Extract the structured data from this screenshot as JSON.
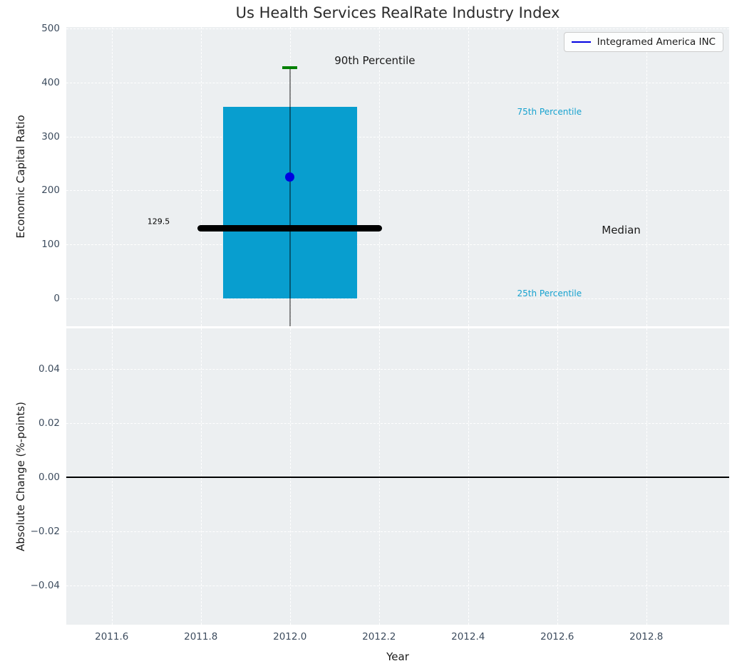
{
  "title": "Us Health Services RealRate Industry Index",
  "legend": {
    "label": "Integramed America INC"
  },
  "colors": {
    "figure_bg": "#ffffff",
    "axes_bg": "#eceff1",
    "grid": "#ffffff",
    "tick_label": "#3d4c5e",
    "axis_label": "#1a1a1a",
    "title_text": "#2b2b2b",
    "box_fill": "#089ecf",
    "median_line": "#000000",
    "whisker_line": "rgba(0,0,0,0.45)",
    "p90_tick": "#008000",
    "company_dot": "#0000e0",
    "legend_line": "#0000e0",
    "percentile_text": "#17a2cf",
    "zero_line": "#000000"
  },
  "chart_data": [
    {
      "type": "box",
      "title": "Us Health Services RealRate Industry Index",
      "ylabel": "Economic Capital Ratio",
      "xlabel": "",
      "ylim": [
        -51.5,
        502.5
      ],
      "xlim": [
        2011.498,
        2012.986
      ],
      "grid": "white dashed, on",
      "legend_position": "upper right",
      "yticks": [
        {
          "v": 0,
          "label": "0"
        },
        {
          "v": 100,
          "label": "100"
        },
        {
          "v": 200,
          "label": "200"
        },
        {
          "v": 300,
          "label": "300"
        },
        {
          "v": 400,
          "label": "400"
        },
        {
          "v": 500,
          "label": "500"
        }
      ],
      "xticks": [
        {
          "v": 2011.6,
          "label": ""
        },
        {
          "v": 2011.8,
          "label": ""
        },
        {
          "v": 2012.0,
          "label": ""
        },
        {
          "v": 2012.2,
          "label": ""
        },
        {
          "v": 2012.4,
          "label": ""
        },
        {
          "v": 2012.6,
          "label": ""
        },
        {
          "v": 2012.8,
          "label": ""
        }
      ],
      "box": {
        "x": 2012.0,
        "box_halfwidth": 0.15,
        "q25": 0,
        "median": 129.5,
        "q75": 355,
        "p90": 427,
        "p90_tick_halfwidth": 0.017,
        "median_line_x": [
          2011.8,
          2012.2
        ],
        "whisker_clipped_below_axis": true,
        "company": {
          "name": "Integramed America INC",
          "x": 2012.0,
          "value": 225
        }
      },
      "annotations": [
        {
          "text": "90th Percentile",
          "x": 2012.1,
          "y": 440,
          "color": "#1a1a1a",
          "size": 15
        },
        {
          "text": "75th Percentile",
          "x": 2012.51,
          "y": 345,
          "color": "#17a2cf",
          "size": 12
        },
        {
          "text": "Median",
          "x": 2012.7,
          "y": 127,
          "color": "#1a1a1a",
          "size": 15
        },
        {
          "text": "25th Percentile",
          "x": 2012.51,
          "y": 9,
          "color": "#17a2cf",
          "size": 12
        },
        {
          "text": "129.5",
          "x": 2011.68,
          "y": 142,
          "color": "#000000",
          "size": 11
        }
      ]
    },
    {
      "type": "line",
      "title": "",
      "ylabel": "Absolute Change (%-points)",
      "xlabel": "Year",
      "ylim": [
        -0.0545,
        0.055
      ],
      "xlim": [
        2011.498,
        2012.986
      ],
      "grid": "white dashed, on",
      "yticks": [
        {
          "v": 0.04,
          "label": "0.04"
        },
        {
          "v": 0.02,
          "label": "0.02"
        },
        {
          "v": 0.0,
          "label": "0.00"
        },
        {
          "v": -0.02,
          "label": "−0.02"
        },
        {
          "v": -0.04,
          "label": "−0.04"
        }
      ],
      "xticks": [
        {
          "v": 2011.6,
          "label": "2011.6"
        },
        {
          "v": 2011.8,
          "label": "2011.8"
        },
        {
          "v": 2012.0,
          "label": "2012.0"
        },
        {
          "v": 2012.2,
          "label": "2012.2"
        },
        {
          "v": 2012.4,
          "label": "2012.4"
        },
        {
          "v": 2012.6,
          "label": "2012.6"
        },
        {
          "v": 2012.8,
          "label": "2012.8"
        }
      ],
      "zero_line_y": 0.0,
      "series": []
    }
  ]
}
